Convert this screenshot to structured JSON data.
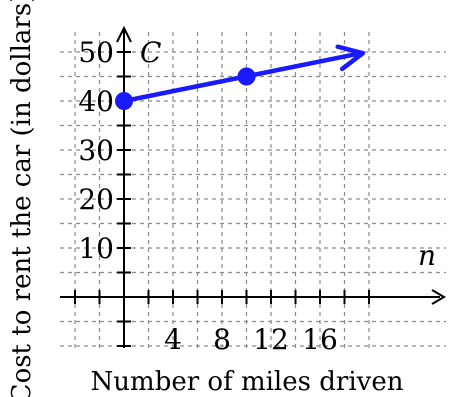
{
  "chart_data": {
    "type": "line",
    "xlabel": "Number of miles driven",
    "ylabel": "Cost to rent the car (in dollars)",
    "x_axis_var": "n",
    "y_axis_var": "C",
    "xlim": [
      -6,
      20
    ],
    "ylim": [
      -10,
      54
    ],
    "x_ticks": [
      4,
      8,
      12,
      16
    ],
    "y_ticks": [
      10,
      20,
      30,
      40,
      50
    ],
    "grid": true,
    "series": [
      {
        "color": "#1a1aff",
        "points": [
          [
            0,
            40
          ],
          [
            10,
            45
          ]
        ],
        "line_end": [
          19.5,
          49.75
        ],
        "arrow_end": true
      }
    ]
  }
}
